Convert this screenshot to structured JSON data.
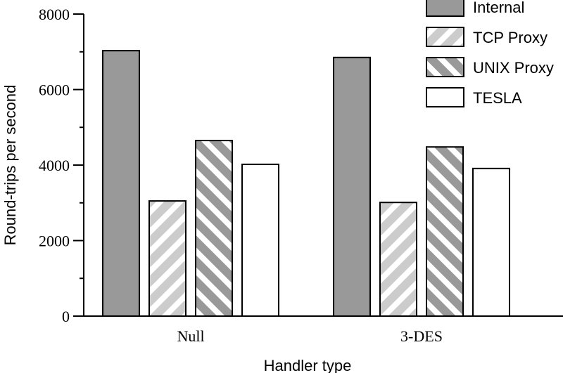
{
  "chart_data": {
    "type": "bar",
    "title": "",
    "xlabel": "Handler type",
    "ylabel": "Round-trips per second",
    "ylim": [
      0,
      8000
    ],
    "yticks": [
      0,
      2000,
      4000,
      6000,
      8000
    ],
    "ytick_labels": [
      "0",
      "2000",
      "4000",
      "6000",
      "8000"
    ],
    "minor_tick_step": 1000,
    "grid": false,
    "legend_position": "top-right",
    "categories": [
      "Null",
      "3-DES"
    ],
    "series": [
      {
        "name": "Internal",
        "values": [
          7030,
          6850
        ],
        "fill": "#999999",
        "pattern": "solid"
      },
      {
        "name": "TCP Proxy",
        "values": [
          3050,
          3010
        ],
        "fill": "#cccccc",
        "pattern": "hatch-forward"
      },
      {
        "name": "UNIX Proxy",
        "values": [
          4650,
          4480
        ],
        "fill": "#999999",
        "pattern": "hatch-back"
      },
      {
        "name": "TESLA",
        "values": [
          4020,
          3910
        ],
        "fill": "#ffffff",
        "pattern": "solid"
      }
    ]
  }
}
